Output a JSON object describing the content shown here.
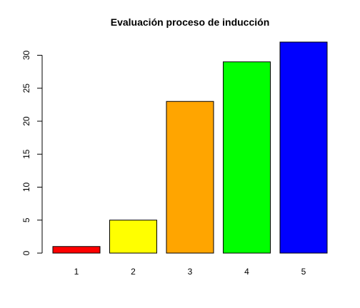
{
  "chart_data": {
    "type": "bar",
    "title": "Evaluación proceso de inducción",
    "xlabel": "",
    "ylabel": "",
    "categories": [
      "1",
      "2",
      "3",
      "4",
      "5"
    ],
    "values": [
      1,
      5,
      23,
      29,
      32
    ],
    "colors": [
      "#ff0000",
      "#ffff00",
      "#ffa500",
      "#00ff00",
      "#0000ff"
    ],
    "ylim": [
      0,
      32
    ],
    "yticks": [
      0,
      5,
      10,
      15,
      20,
      25,
      30
    ],
    "grid": false,
    "legend": "none"
  }
}
